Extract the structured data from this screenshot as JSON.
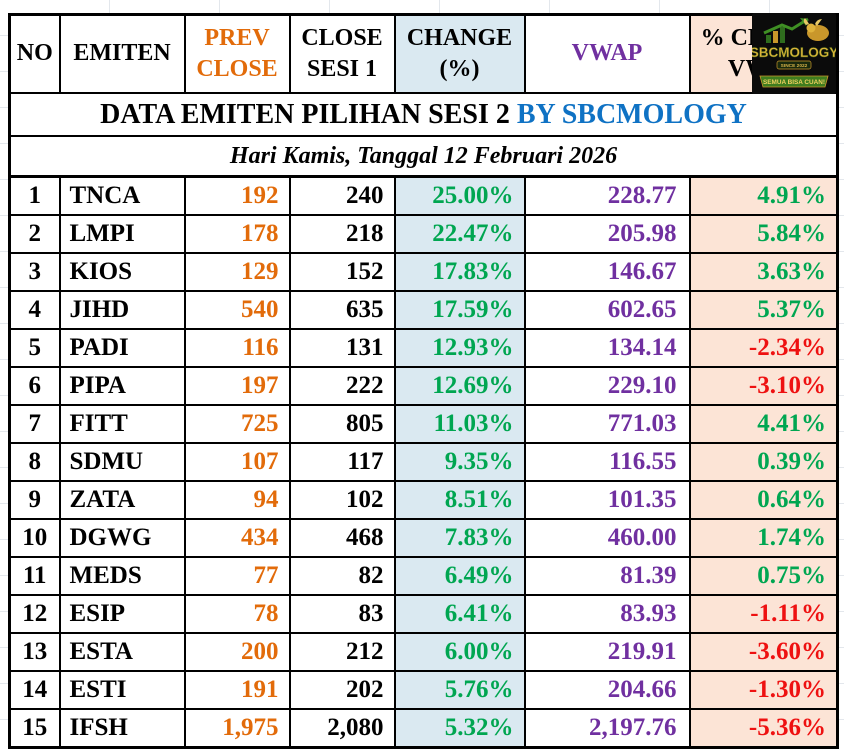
{
  "title": {
    "main": "DATA EMITEN PILIHAN SESI 2",
    "by": " BY SBCMOLOGY"
  },
  "subtitle": "Hari Kamis, Tanggal 12 Februari 2026",
  "logo": {
    "brand": "SBCMOLOGY",
    "since": "SINCE 2022",
    "tagline": "SEMUA BISA CUAN!"
  },
  "columns": [
    {
      "key": "no",
      "label": "NO"
    },
    {
      "key": "emiten",
      "label": "EMITEN"
    },
    {
      "key": "prev_close",
      "label": "PREV\nCLOSE"
    },
    {
      "key": "close_sesi1",
      "label": "CLOSE\nSESI 1"
    },
    {
      "key": "change_pct",
      "label": "CHANGE\n(%)"
    },
    {
      "key": "vwap",
      "label": "VWAP"
    },
    {
      "key": "close_vwap_pct",
      "label": "% CLOSE -\nVWAP"
    }
  ],
  "rows": [
    {
      "no": "1",
      "emiten": "TNCA",
      "prev_close": "192",
      "close_sesi1": "240",
      "change_pct": "25.00%",
      "vwap": "228.77",
      "close_vwap_pct": "4.91%"
    },
    {
      "no": "2",
      "emiten": "LMPI",
      "prev_close": "178",
      "close_sesi1": "218",
      "change_pct": "22.47%",
      "vwap": "205.98",
      "close_vwap_pct": "5.84%"
    },
    {
      "no": "3",
      "emiten": "KIOS",
      "prev_close": "129",
      "close_sesi1": "152",
      "change_pct": "17.83%",
      "vwap": "146.67",
      "close_vwap_pct": "3.63%"
    },
    {
      "no": "4",
      "emiten": "JIHD",
      "prev_close": "540",
      "close_sesi1": "635",
      "change_pct": "17.59%",
      "vwap": "602.65",
      "close_vwap_pct": "5.37%"
    },
    {
      "no": "5",
      "emiten": "PADI",
      "prev_close": "116",
      "close_sesi1": "131",
      "change_pct": "12.93%",
      "vwap": "134.14",
      "close_vwap_pct": "-2.34%"
    },
    {
      "no": "6",
      "emiten": "PIPA",
      "prev_close": "197",
      "close_sesi1": "222",
      "change_pct": "12.69%",
      "vwap": "229.10",
      "close_vwap_pct": "-3.10%"
    },
    {
      "no": "7",
      "emiten": "FITT",
      "prev_close": "725",
      "close_sesi1": "805",
      "change_pct": "11.03%",
      "vwap": "771.03",
      "close_vwap_pct": "4.41%"
    },
    {
      "no": "8",
      "emiten": "SDMU",
      "prev_close": "107",
      "close_sesi1": "117",
      "change_pct": "9.35%",
      "vwap": "116.55",
      "close_vwap_pct": "0.39%"
    },
    {
      "no": "9",
      "emiten": "ZATA",
      "prev_close": "94",
      "close_sesi1": "102",
      "change_pct": "8.51%",
      "vwap": "101.35",
      "close_vwap_pct": "0.64%"
    },
    {
      "no": "10",
      "emiten": "DGWG",
      "prev_close": "434",
      "close_sesi1": "468",
      "change_pct": "7.83%",
      "vwap": "460.00",
      "close_vwap_pct": "1.74%"
    },
    {
      "no": "11",
      "emiten": "MEDS",
      "prev_close": "77",
      "close_sesi1": "82",
      "change_pct": "6.49%",
      "vwap": "81.39",
      "close_vwap_pct": "0.75%"
    },
    {
      "no": "12",
      "emiten": "ESIP",
      "prev_close": "78",
      "close_sesi1": "83",
      "change_pct": "6.41%",
      "vwap": "83.93",
      "close_vwap_pct": "-1.11%"
    },
    {
      "no": "13",
      "emiten": "ESTA",
      "prev_close": "200",
      "close_sesi1": "212",
      "change_pct": "6.00%",
      "vwap": "219.91",
      "close_vwap_pct": "-3.60%"
    },
    {
      "no": "14",
      "emiten": "ESTI",
      "prev_close": "191",
      "close_sesi1": "202",
      "change_pct": "5.76%",
      "vwap": "204.66",
      "close_vwap_pct": "-1.30%"
    },
    {
      "no": "15",
      "emiten": "IFSH",
      "prev_close": "1,975",
      "close_sesi1": "2,080",
      "change_pct": "5.32%",
      "vwap": "2,197.76",
      "close_vwap_pct": "-5.36%"
    }
  ],
  "colors": {
    "title_blue": "#0F72C4",
    "orange": "#E26B0A",
    "green": "#00A651",
    "red": "#EE1111",
    "purple": "#7030A0",
    "change_bg": "#DAE9F1",
    "diff_bg": "#FCE4D6",
    "border": "#000000",
    "logo_gold": "#E0B33C",
    "logo_green": "#3F7D1F"
  },
  "chart_data": {
    "type": "table",
    "title": "DATA EMITEN PILIHAN SESI 2 BY SBCMOLOGY",
    "subtitle": "Hari Kamis, Tanggal 12 Februari 2026",
    "columns": [
      "NO",
      "EMITEN",
      "PREV CLOSE",
      "CLOSE SESI 1",
      "CHANGE (%)",
      "VWAP",
      "% CLOSE - VWAP"
    ],
    "rows": [
      [
        1,
        "TNCA",
        192,
        240,
        25.0,
        228.77,
        4.91
      ],
      [
        2,
        "LMPI",
        178,
        218,
        22.47,
        205.98,
        5.84
      ],
      [
        3,
        "KIOS",
        129,
        152,
        17.83,
        146.67,
        3.63
      ],
      [
        4,
        "JIHD",
        540,
        635,
        17.59,
        602.65,
        5.37
      ],
      [
        5,
        "PADI",
        116,
        131,
        12.93,
        134.14,
        -2.34
      ],
      [
        6,
        "PIPA",
        197,
        222,
        12.69,
        229.1,
        -3.1
      ],
      [
        7,
        "FITT",
        725,
        805,
        11.03,
        771.03,
        4.41
      ],
      [
        8,
        "SDMU",
        107,
        117,
        9.35,
        116.55,
        0.39
      ],
      [
        9,
        "ZATA",
        94,
        102,
        8.51,
        101.35,
        0.64
      ],
      [
        10,
        "DGWG",
        434,
        468,
        7.83,
        460.0,
        1.74
      ],
      [
        11,
        "MEDS",
        77,
        82,
        6.49,
        81.39,
        0.75
      ],
      [
        12,
        "ESIP",
        78,
        83,
        6.41,
        83.93,
        -1.11
      ],
      [
        13,
        "ESTA",
        200,
        212,
        6.0,
        219.91,
        -3.6
      ],
      [
        14,
        "ESTI",
        191,
        202,
        5.76,
        204.66,
        -1.3
      ],
      [
        15,
        "IFSH",
        1975,
        2080,
        5.32,
        2197.76,
        -5.36
      ]
    ]
  }
}
